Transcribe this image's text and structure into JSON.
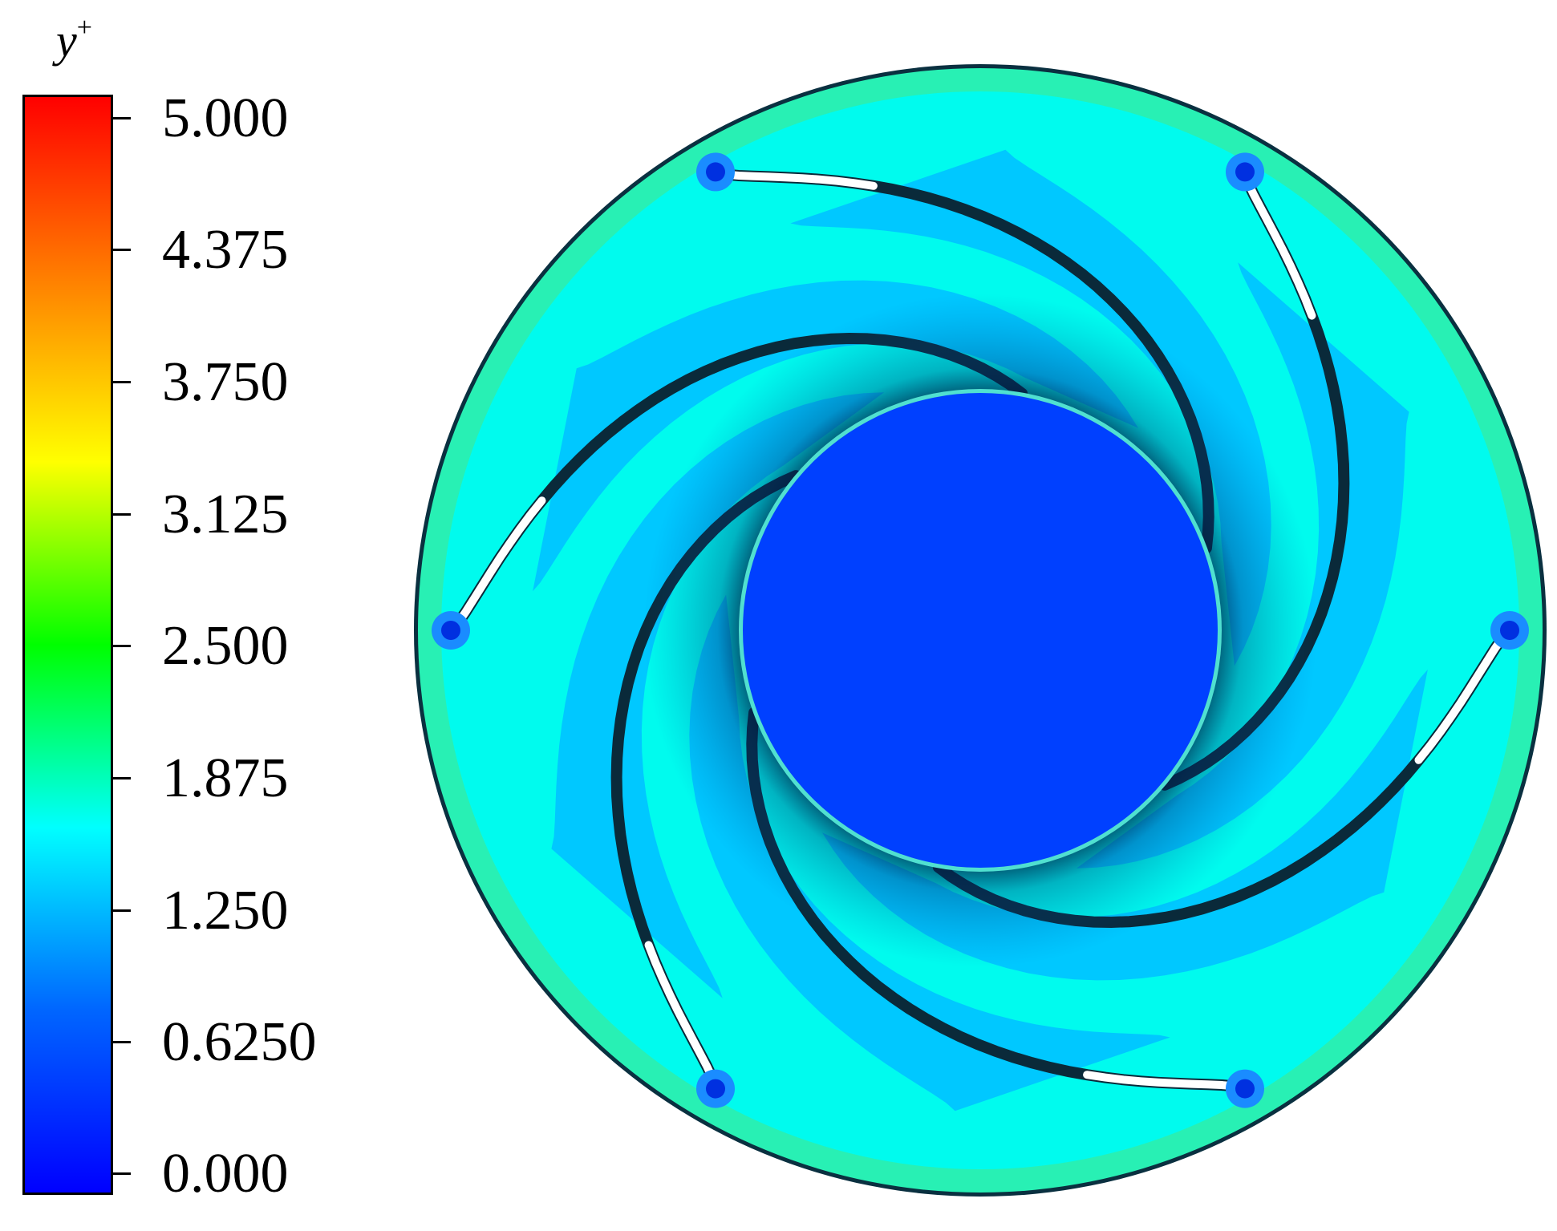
{
  "legend": {
    "title_base": "y",
    "title_sup": "+",
    "ticks": [
      "5.000",
      "4.375",
      "3.750",
      "3.125",
      "2.500",
      "1.875",
      "1.250",
      "0.6250",
      "0.000"
    ],
    "range": [
      0,
      5
    ],
    "levels": 40,
    "colormap": [
      "#0000ff",
      "#0066ff",
      "#00ffff",
      "#00ff00",
      "#ffff00",
      "#ff8000",
      "#ff0000"
    ]
  },
  "contour": {
    "blade_count": 6,
    "fill_outer": "#00fbee",
    "fill_mid": "#00c8ff",
    "fill_hub": "#0040ff",
    "fill_rim": "#28f0b4",
    "blade_color": "#0a2a3a"
  }
}
